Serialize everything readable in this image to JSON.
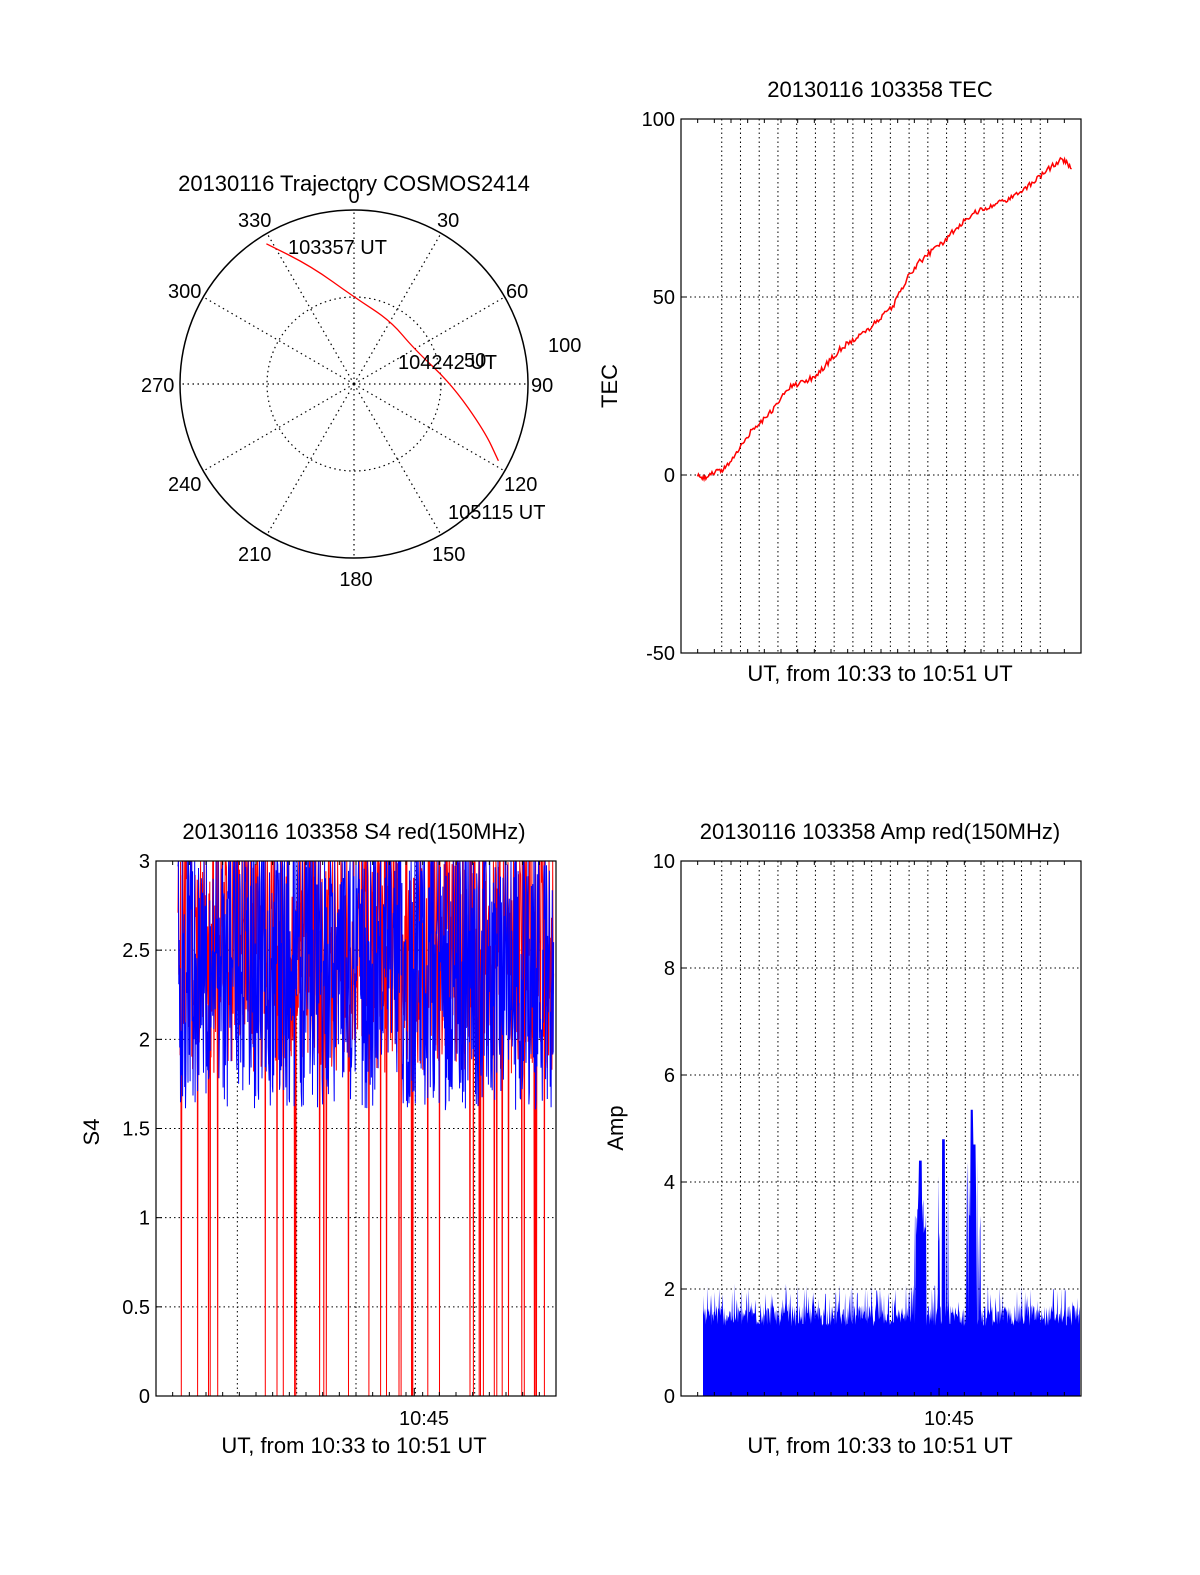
{
  "colors": {
    "red": "#ff0000",
    "blue": "#0000ff",
    "axis": "#000000"
  },
  "chart_data": [
    {
      "id": "trajectory",
      "type": "polar",
      "title": "20130116 Trajectory COSMOS2414",
      "angle_labels": [
        "0",
        "30",
        "60",
        "90",
        "120",
        "150",
        "180",
        "210",
        "240",
        "270",
        "300",
        "330"
      ],
      "radius_labels": [
        "50",
        "100"
      ],
      "rlim": [
        0,
        100
      ],
      "grid": true,
      "series": [
        {
          "color": "#ff0000",
          "points": [
            [
              328,
              95
            ],
            [
              340,
              72
            ],
            [
              0,
              50
            ],
            [
              30,
              42
            ],
            [
              60,
              40
            ],
            [
              90,
              56
            ],
            [
              110,
              80
            ],
            [
              118,
              94
            ]
          ]
        }
      ],
      "annotations": [
        {
          "text": "103357 UT",
          "az": 328,
          "r": 95
        },
        {
          "text": "104242 UT",
          "az": 75,
          "r": 44
        },
        {
          "text": "105115 UT",
          "az": 118,
          "r": 94
        }
      ]
    },
    {
      "id": "tec",
      "type": "line",
      "title": "20130116 103358 TEC",
      "xlabel": "UT, from 10:33 to 10:51 UT",
      "ylabel": "TEC",
      "ylim": [
        -50,
        100
      ],
      "xlim": [
        10.55,
        10.86
      ],
      "yticks": [
        "100",
        "50",
        "0",
        "-50"
      ],
      "grid": true,
      "series": [
        {
          "color": "#ff0000",
          "x": [
            10.5628,
            10.57,
            10.578,
            10.585,
            10.595,
            10.605,
            10.615,
            10.625,
            10.635,
            10.645,
            10.655,
            10.665,
            10.675,
            10.685,
            10.695,
            10.705,
            10.715,
            10.725,
            10.735,
            10.745,
            10.755,
            10.765,
            10.775,
            10.785,
            10.795,
            10.805,
            10.815,
            10.825,
            10.835,
            10.845,
            10.8527
          ],
          "y": [
            -0.5,
            -0.5,
            1,
            2,
            7,
            13,
            16,
            20,
            25,
            26,
            28,
            32,
            36,
            38,
            41,
            44,
            48,
            55,
            60,
            63,
            66,
            70,
            73,
            75,
            76,
            78,
            80,
            83,
            86,
            89,
            86
          ]
        }
      ]
    },
    {
      "id": "s4",
      "type": "line",
      "title": "20130116 103358 S4 red(150MHz)",
      "xlabel": "UT, from 10:33 to 10:51 UT",
      "ylabel": "S4",
      "ylim": [
        0,
        3
      ],
      "xlim": [
        10.5628,
        10.8527
      ],
      "xticks": [
        {
          "value": 10.75,
          "label": "10:45"
        }
      ],
      "yticks": [
        "3",
        "2.5",
        "2",
        "1.5",
        "1",
        "0.5",
        "0"
      ],
      "grid": true,
      "series": [
        {
          "color": "#ff0000",
          "band": [
            1.5,
            3.0
          ],
          "drops_to": 0
        },
        {
          "color": "#0000ff",
          "band": [
            1.4,
            3.0
          ]
        }
      ]
    },
    {
      "id": "amp",
      "type": "area",
      "title": "20130116 103358 Amp red(150MHz)",
      "xlabel": "UT, from 10:33 to 10:51 UT",
      "ylabel": "Amp",
      "ylim": [
        0,
        10
      ],
      "xlim": [
        10.55,
        10.86
      ],
      "xticks": [
        {
          "value": 10.75,
          "label": "10:45"
        }
      ],
      "yticks": [
        "10",
        "8",
        "6",
        "4",
        "2",
        "0"
      ],
      "grid": true,
      "series": [
        {
          "color": "#0000ff",
          "baseline": 1.3,
          "noise_max": 2.1,
          "spikes": [
            {
              "x": 10.7355,
              "y": 4.4
            },
            {
              "x": 10.7355,
              "y": 4.4
            },
            {
              "x": 10.7535,
              "y": 4.8
            },
            {
              "x": 10.7755,
              "y": 5.35
            },
            {
              "x": 10.7775,
              "y": 4.7
            }
          ]
        }
      ]
    }
  ]
}
